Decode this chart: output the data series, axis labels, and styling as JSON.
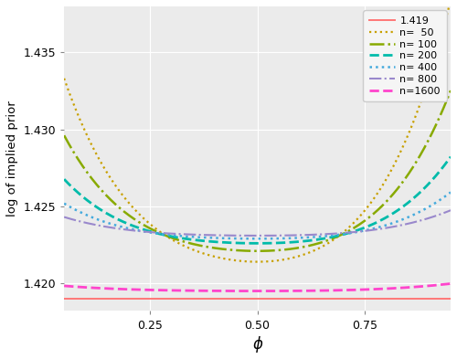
{
  "title": "",
  "xlabel": "ϕ",
  "ylabel": "log of implied prior",
  "xlim": [
    0.05,
    0.95
  ],
  "ylim": [
    1.4182,
    1.438
  ],
  "yticks": [
    1.42,
    1.425,
    1.43,
    1.435
  ],
  "xticks": [
    0.25,
    0.5,
    0.75
  ],
  "phi_min": 0.05,
  "phi_max": 0.95,
  "phi0": 0.5,
  "constant_value": 1.419,
  "series": [
    {
      "label": "1.419",
      "n": 0,
      "color": "#FF7777",
      "linestyle": "solid",
      "linewidth": 1.4,
      "base": 1.419,
      "amp": 0.0,
      "amp4": 0.0
    },
    {
      "label": "n=  50",
      "n": 50,
      "color": "#C8A000",
      "linestyle": "dotted",
      "linewidth": 1.6,
      "base": 1.4214,
      "amp": 0.035,
      "amp4": 0.18
    },
    {
      "label": "n= 100",
      "n": 100,
      "color": "#88AA00",
      "linestyle": "dashdot",
      "linewidth": 1.8,
      "base": 1.4221,
      "amp": 0.02,
      "amp4": 0.12
    },
    {
      "label": "n= 200",
      "n": 200,
      "color": "#00BBAA",
      "linestyle": "dashed",
      "linewidth": 2.0,
      "base": 1.4226,
      "amp": 0.01,
      "amp4": 0.07
    },
    {
      "label": "n= 400",
      "n": 400,
      "color": "#44AADD",
      "linestyle": "dotted",
      "linewidth": 1.8,
      "base": 1.4229,
      "amp": 0.005,
      "amp4": 0.04
    },
    {
      "label": "n= 800",
      "n": 800,
      "color": "#9988CC",
      "linestyle": "dashdot",
      "linewidth": 1.5,
      "base": 1.4231,
      "amp": 0.003,
      "amp4": 0.02
    },
    {
      "label": "n=1600",
      "n": 1600,
      "color": "#FF44CC",
      "linestyle": "dashed",
      "linewidth": 2.0,
      "base": 1.4195,
      "amp": 0.001,
      "amp4": 0.005
    }
  ],
  "background_color": "#EBEBEB",
  "grid_color": "#FFFFFF",
  "legend_background": "#F5F5F5",
  "legend_edge_color": "#CCCCCC"
}
